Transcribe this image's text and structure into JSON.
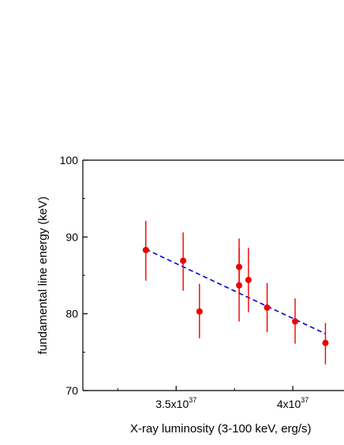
{
  "chart_data": {
    "type": "scatter",
    "title": "",
    "xlabel": "X-ray luminosity (3-100 keV, erg/s)",
    "ylabel": "fundamental line energy (keV)",
    "x_tick_labels": [
      {
        "value": 3.5e+37,
        "mantissa": "3.5x10",
        "exponent": "37"
      },
      {
        "value": 4e+37,
        "mantissa": "4x10",
        "exponent": "37"
      }
    ],
    "y_tick_labels": [
      {
        "value": 70,
        "label": "70"
      },
      {
        "value": 80,
        "label": "80"
      },
      {
        "value": 90,
        "label": "90"
      },
      {
        "value": 100,
        "label": "100"
      }
    ],
    "xlim": [
      3.1e+37,
      4.25e+37
    ],
    "ylim": [
      70,
      100
    ],
    "marker_color": "#ee0000",
    "fit_color": "#0000dd",
    "points": [
      {
        "x": 3.37e+37,
        "y": 88.3,
        "yerr_low": 84.3,
        "yerr_high": 92.1
      },
      {
        "x": 3.53e+37,
        "y": 86.9,
        "yerr_low": 83.0,
        "yerr_high": 90.6
      },
      {
        "x": 3.6e+37,
        "y": 80.3,
        "yerr_low": 76.8,
        "yerr_high": 83.9
      },
      {
        "x": 3.77e+37,
        "y": 86.1,
        "yerr_low": 82.6,
        "yerr_high": 89.8
      },
      {
        "x": 3.77e+37,
        "y": 83.7,
        "yerr_low": 79.0,
        "yerr_high": 88.6
      },
      {
        "x": 3.81e+37,
        "y": 84.4,
        "yerr_low": 80.2,
        "yerr_high": 88.6
      },
      {
        "x": 3.89e+37,
        "y": 80.8,
        "yerr_low": 77.6,
        "yerr_high": 84.0
      },
      {
        "x": 4.01e+37,
        "y": 79.0,
        "yerr_low": 76.1,
        "yerr_high": 82.0
      },
      {
        "x": 4.14e+37,
        "y": 76.2,
        "yerr_low": 73.4,
        "yerr_high": 78.8
      }
    ],
    "fit_line": {
      "x": [
        3.37e+37,
        4.14e+37
      ],
      "y": [
        88.4,
        77.4
      ],
      "style": "dashed"
    }
  }
}
